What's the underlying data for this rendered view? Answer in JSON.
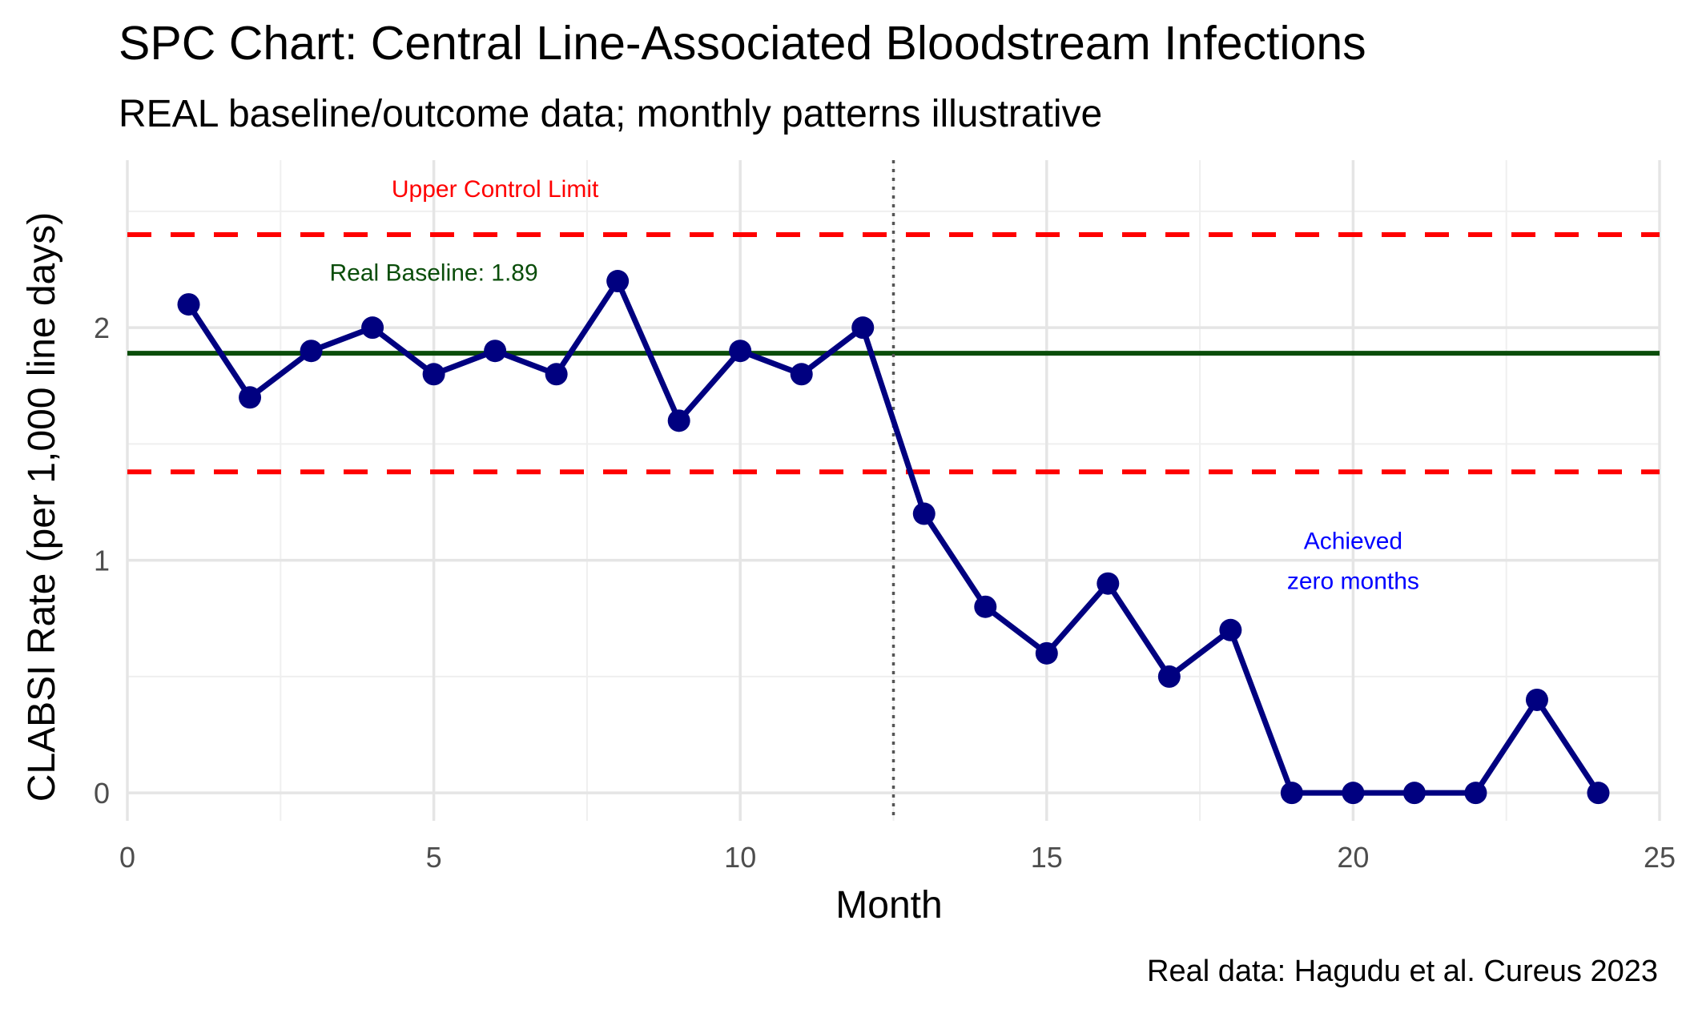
{
  "chart_data": {
    "type": "line",
    "title": "SPC Chart: Central Line-Associated Bloodstream Infections",
    "subtitle": "REAL baseline/outcome data; monthly patterns illustrative",
    "xlabel": "Month",
    "ylabel": "CLABSI Rate (per 1,000 line days)",
    "caption": "Real data: Hagudu et al. Cureus 2023",
    "xlim": [
      0,
      25
    ],
    "ylim": [
      -0.12,
      2.72
    ],
    "x_ticks": [
      0,
      5,
      10,
      15,
      20,
      25
    ],
    "y_ticks": [
      0,
      1,
      2
    ],
    "grid": true,
    "series": [
      {
        "color": "#000080",
        "x": [
          1,
          2,
          3,
          4,
          5,
          6,
          7,
          8,
          9,
          10,
          11,
          12,
          13,
          14,
          15,
          16,
          17,
          18,
          19,
          20,
          21,
          22,
          23,
          24
        ],
        "values": [
          2.1,
          1.7,
          1.9,
          2.0,
          1.8,
          1.9,
          1.8,
          2.2,
          1.6,
          1.9,
          1.8,
          2.0,
          1.2,
          0.8,
          0.6,
          0.9,
          0.5,
          0.7,
          0.0,
          0.0,
          0.0,
          0.0,
          0.4,
          0.0
        ]
      }
    ],
    "reference_lines": {
      "baseline": {
        "y": 1.89,
        "color": "#0a4d0a",
        "style": "solid"
      },
      "upper_control_limit": {
        "y": 2.4,
        "color": "#ff0000",
        "style": "dashed"
      },
      "lower_control_limit": {
        "y": 1.38,
        "color": "#ff0000",
        "style": "dashed"
      },
      "intervention": {
        "x": 12.5,
        "color": "#555555",
        "style": "dotted"
      }
    },
    "annotations": [
      {
        "text": "Upper Control Limit",
        "x": 6,
        "y": 2.6,
        "color": "#ff0000"
      },
      {
        "text": "Real Baseline: 1.89",
        "x": 5,
        "y": 2.24,
        "color": "#0a4d0a"
      },
      {
        "lines": [
          "Achieved",
          "zero months"
        ],
        "x": 20,
        "y": 1.0,
        "color": "#0000ff"
      }
    ]
  }
}
